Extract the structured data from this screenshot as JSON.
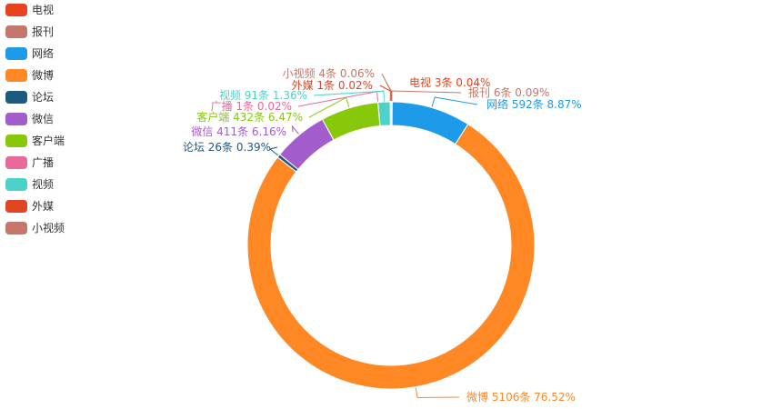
{
  "chart_data": {
    "type": "pie",
    "style": "donut",
    "legend_position": "left",
    "unit": "条",
    "series": [
      {
        "name": "电视",
        "value": 3,
        "percent": "0.04%",
        "color": "#E8431E"
      },
      {
        "name": "报刊",
        "value": 6,
        "percent": "0.09%",
        "color": "#C4776A"
      },
      {
        "name": "网络",
        "value": 592,
        "percent": "8.87%",
        "color": "#1E9BE8"
      },
      {
        "name": "微博",
        "value": 5106,
        "percent": "76.52%",
        "color": "#FF8724"
      },
      {
        "name": "论坛",
        "value": 26,
        "percent": "0.39%",
        "color": "#1C5A80"
      },
      {
        "name": "微信",
        "value": 411,
        "percent": "6.16%",
        "color": "#A35CCC"
      },
      {
        "name": "客户端",
        "value": 432,
        "percent": "6.47%",
        "color": "#87C80A"
      },
      {
        "name": "广播",
        "value": 1,
        "percent": "0.02%",
        "color": "#E8699A"
      },
      {
        "name": "视频",
        "value": 91,
        "percent": "1.36%",
        "color": "#4CD2C8"
      },
      {
        "name": "外媒",
        "value": 1,
        "percent": "0.02%",
        "color": "#E04524"
      },
      {
        "name": "小视频",
        "value": 4,
        "percent": "0.06%",
        "color": "#C4776A"
      }
    ]
  }
}
